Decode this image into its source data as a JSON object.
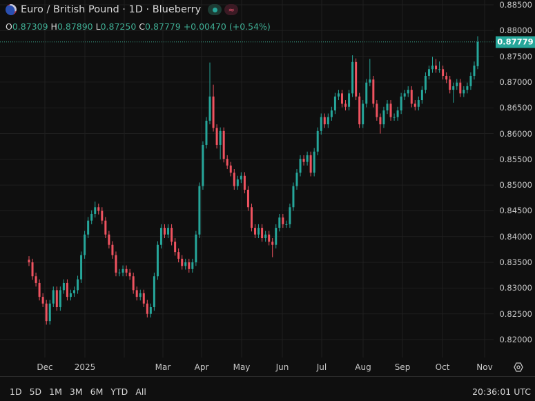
{
  "header": {
    "title": "Euro / British Pound · 1D · Blueberry",
    "ohlc": {
      "o_label": "O",
      "o": "0.87309",
      "h_label": "H",
      "h": "0.87890",
      "l_label": "L",
      "l": "0.87250",
      "c_label": "C",
      "c": "0.87779",
      "change": "+0.00470 (+0.54%)"
    },
    "status_icons": [
      "market-open-dot-icon",
      "data-wave-icon"
    ]
  },
  "price_tag": "0.87779",
  "bottom_bar": {
    "ranges": [
      "1D",
      "5D",
      "1M",
      "3M",
      "6M",
      "YTD",
      "All"
    ],
    "clock": "20:36:01 UTC"
  },
  "colors": {
    "up": "#26a69a",
    "down": "#ef5360",
    "background": "#0f0f0f",
    "grid": "#1f1f1f"
  },
  "chart_data": {
    "type": "candlestick",
    "symbol": "EURGBP",
    "interval": "1D",
    "y_ticks": [
      "0.88500",
      "0.88000",
      "0.87500",
      "0.87000",
      "0.86500",
      "0.86000",
      "0.85500",
      "0.85000",
      "0.84500",
      "0.84000",
      "0.83500",
      "0.83000",
      "0.82500",
      "0.82000"
    ],
    "ylim": [
      0.82,
      0.885
    ],
    "x_ticks": [
      "Dec",
      "2025",
      "Mar",
      "Apr",
      "May",
      "Jun",
      "Jul",
      "Aug",
      "Sep",
      "Oct",
      "Nov"
    ],
    "grid": true,
    "last_price": 0.87779,
    "open": [
      0.8355,
      0.835,
      0.8323,
      0.831,
      0.8283,
      0.827,
      0.8236,
      0.827,
      0.8296,
      0.8263,
      0.8296,
      0.831,
      0.8283,
      0.829,
      0.8296,
      0.8317,
      0.8364,
      0.8404,
      0.8431,
      0.8444,
      0.8457,
      0.845,
      0.8431,
      0.8404,
      0.8384,
      0.8364,
      0.833,
      0.833,
      0.8337,
      0.833,
      0.8323,
      0.8296,
      0.8283,
      0.829,
      0.827,
      0.825,
      0.8263,
      0.8323,
      0.8384,
      0.8417,
      0.8404,
      0.8417,
      0.839,
      0.837,
      0.8357,
      0.8343,
      0.835,
      0.8337,
      0.835,
      0.8404,
      0.8498,
      0.8578,
      0.8625,
      0.8672,
      0.8611,
      0.8578,
      0.8605,
      0.8551,
      0.8538,
      0.8524,
      0.8498,
      0.8511,
      0.8518,
      0.8491,
      0.8457,
      0.8417,
      0.8404,
      0.8417,
      0.8397,
      0.8404,
      0.839,
      0.8384,
      0.8417,
      0.8437,
      0.8424,
      0.8424,
      0.8457,
      0.8498,
      0.8524,
      0.8551,
      0.8545,
      0.8558,
      0.8524,
      0.8565,
      0.8605,
      0.8632,
      0.8618,
      0.8632,
      0.8645,
      0.8672,
      0.8678,
      0.8658,
      0.8652,
      0.8678,
      0.8739,
      0.8672,
      0.8618,
      0.8658,
      0.8699,
      0.8705,
      0.8658,
      0.8632,
      0.8618,
      0.8645,
      0.8658,
      0.8632,
      0.8632,
      0.8645,
      0.8672,
      0.8678,
      0.8685,
      0.8658,
      0.8652,
      0.8665,
      0.8685,
      0.8712,
      0.8725,
      0.8732,
      0.8725,
      0.8725,
      0.8712,
      0.8705,
      0.8685,
      0.8692,
      0.8699,
      0.8678,
      0.8685,
      0.8692,
      0.8712,
      0.87309
    ],
    "high": [
      0.8362,
      0.8357,
      0.833,
      0.8317,
      0.829,
      0.8277,
      0.8277,
      0.8303,
      0.8303,
      0.8303,
      0.8317,
      0.8317,
      0.8297,
      0.8303,
      0.8324,
      0.8371,
      0.8411,
      0.8438,
      0.8451,
      0.8468,
      0.8464,
      0.8457,
      0.8438,
      0.8411,
      0.8391,
      0.8371,
      0.8337,
      0.8344,
      0.8344,
      0.8337,
      0.833,
      0.8303,
      0.8297,
      0.8297,
      0.8277,
      0.827,
      0.833,
      0.8391,
      0.8424,
      0.8424,
      0.8424,
      0.8424,
      0.8397,
      0.8377,
      0.8364,
      0.8357,
      0.8357,
      0.8357,
      0.8411,
      0.8505,
      0.8585,
      0.8632,
      0.8738,
      0.8695,
      0.8618,
      0.8612,
      0.8612,
      0.8558,
      0.8545,
      0.8531,
      0.8518,
      0.8525,
      0.8525,
      0.8498,
      0.8464,
      0.8424,
      0.8424,
      0.8424,
      0.8411,
      0.8411,
      0.8397,
      0.8424,
      0.8444,
      0.8444,
      0.8431,
      0.8464,
      0.8505,
      0.8531,
      0.8558,
      0.8558,
      0.8565,
      0.8565,
      0.8572,
      0.8612,
      0.8639,
      0.8639,
      0.8639,
      0.8652,
      0.8679,
      0.8685,
      0.8685,
      0.8665,
      0.8685,
      0.8752,
      0.8746,
      0.8679,
      0.8665,
      0.8706,
      0.8745,
      0.8712,
      0.8665,
      0.8639,
      0.8652,
      0.8665,
      0.8665,
      0.8639,
      0.8652,
      0.8679,
      0.8685,
      0.8692,
      0.8692,
      0.8665,
      0.8672,
      0.8692,
      0.8719,
      0.8732,
      0.8749,
      0.8745,
      0.874,
      0.8732,
      0.8719,
      0.8712,
      0.8699,
      0.8706,
      0.8706,
      0.8692,
      0.8699,
      0.8719,
      0.874,
      0.8789
    ],
    "low": [
      0.8343,
      0.8316,
      0.8303,
      0.8276,
      0.8263,
      0.8229,
      0.8229,
      0.8263,
      0.8256,
      0.8256,
      0.8289,
      0.8276,
      0.8276,
      0.8283,
      0.8289,
      0.831,
      0.8357,
      0.8397,
      0.8424,
      0.8437,
      0.8443,
      0.8424,
      0.8397,
      0.8377,
      0.8357,
      0.8323,
      0.8323,
      0.8323,
      0.8323,
      0.8316,
      0.8289,
      0.8276,
      0.8276,
      0.8263,
      0.8243,
      0.8243,
      0.8256,
      0.8316,
      0.8377,
      0.8397,
      0.8397,
      0.8383,
      0.8363,
      0.835,
      0.8336,
      0.8336,
      0.833,
      0.833,
      0.8343,
      0.8397,
      0.8491,
      0.8571,
      0.8618,
      0.8604,
      0.8571,
      0.855,
      0.8544,
      0.8531,
      0.8517,
      0.8491,
      0.8491,
      0.8504,
      0.8484,
      0.845,
      0.841,
      0.8397,
      0.8397,
      0.839,
      0.839,
      0.8383,
      0.836,
      0.8377,
      0.841,
      0.8417,
      0.8417,
      0.8417,
      0.845,
      0.8491,
      0.8517,
      0.8538,
      0.8538,
      0.8517,
      0.8517,
      0.8558,
      0.8598,
      0.8611,
      0.8611,
      0.8625,
      0.8638,
      0.8665,
      0.8651,
      0.8645,
      0.8645,
      0.8671,
      0.8665,
      0.8611,
      0.8611,
      0.8651,
      0.8692,
      0.8651,
      0.8625,
      0.86,
      0.8611,
      0.8638,
      0.8625,
      0.8625,
      0.8625,
      0.8638,
      0.8665,
      0.8671,
      0.8651,
      0.8645,
      0.8645,
      0.8658,
      0.8678,
      0.8705,
      0.8718,
      0.8718,
      0.8718,
      0.8705,
      0.8698,
      0.8678,
      0.866,
      0.8685,
      0.8671,
      0.8671,
      0.8678,
      0.8685,
      0.8705,
      0.8725
    ],
    "close": [
      0.835,
      0.8323,
      0.831,
      0.8283,
      0.827,
      0.8236,
      0.827,
      0.8296,
      0.8263,
      0.8296,
      0.831,
      0.8283,
      0.829,
      0.8296,
      0.8317,
      0.8364,
      0.8404,
      0.8431,
      0.8444,
      0.8457,
      0.845,
      0.8431,
      0.8404,
      0.8384,
      0.8364,
      0.833,
      0.833,
      0.8337,
      0.833,
      0.8323,
      0.8296,
      0.8283,
      0.829,
      0.827,
      0.825,
      0.8263,
      0.8323,
      0.8384,
      0.8417,
      0.8404,
      0.8417,
      0.839,
      0.837,
      0.8357,
      0.8343,
      0.835,
      0.8337,
      0.835,
      0.8404,
      0.8498,
      0.8578,
      0.8625,
      0.8672,
      0.8611,
      0.8578,
      0.8605,
      0.8551,
      0.8538,
      0.8524,
      0.8498,
      0.8511,
      0.8518,
      0.8491,
      0.8457,
      0.8417,
      0.8404,
      0.8417,
      0.8397,
      0.8404,
      0.839,
      0.8384,
      0.8417,
      0.8437,
      0.8424,
      0.8424,
      0.8457,
      0.8498,
      0.8524,
      0.8551,
      0.8545,
      0.8558,
      0.8524,
      0.8565,
      0.8605,
      0.8632,
      0.8618,
      0.8632,
      0.8645,
      0.8672,
      0.8678,
      0.8658,
      0.8652,
      0.8678,
      0.8739,
      0.8672,
      0.8618,
      0.8658,
      0.8699,
      0.8705,
      0.8658,
      0.8632,
      0.8618,
      0.8645,
      0.8658,
      0.8632,
      0.8632,
      0.8645,
      0.8672,
      0.8678,
      0.8685,
      0.8658,
      0.8652,
      0.8665,
      0.8685,
      0.8712,
      0.8725,
      0.8732,
      0.8725,
      0.8725,
      0.8712,
      0.8705,
      0.8685,
      0.8692,
      0.8699,
      0.8678,
      0.8685,
      0.8692,
      0.8712,
      0.8732,
      0.87779
    ]
  }
}
